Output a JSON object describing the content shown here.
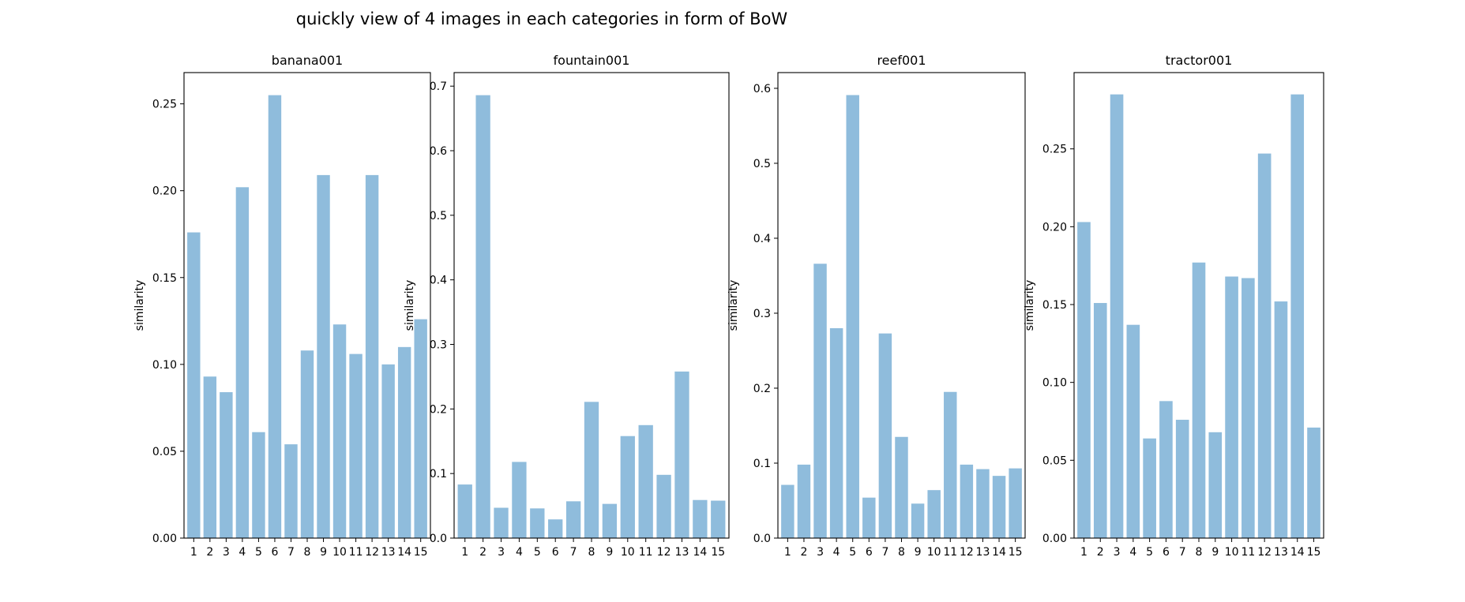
{
  "figure": {
    "title": "quickly view of 4 images in each categories in form of BoW"
  },
  "style": {
    "bar_color": "#8fbcdc",
    "axis_color": "#000000",
    "background": "#ffffff"
  },
  "chart_data": [
    {
      "type": "bar",
      "title": "banana001",
      "xlabel": "",
      "ylabel": "similarity",
      "categories": [
        "1",
        "2",
        "3",
        "4",
        "5",
        "6",
        "7",
        "8",
        "9",
        "10",
        "11",
        "12",
        "13",
        "14",
        "15"
      ],
      "values": [
        0.176,
        0.093,
        0.084,
        0.202,
        0.061,
        0.255,
        0.054,
        0.108,
        0.209,
        0.123,
        0.106,
        0.209,
        0.1,
        0.11,
        0.126
      ],
      "ylim": [
        0,
        0.268
      ],
      "yticks": [
        0,
        0.05,
        0.1,
        0.15,
        0.2,
        0.25
      ],
      "yticklabels": [
        "0.00",
        "0.05",
        "0.10",
        "0.15",
        "0.20",
        "0.25"
      ],
      "grid": false
    },
    {
      "type": "bar",
      "title": "fountain001",
      "xlabel": "",
      "ylabel": "similarity",
      "categories": [
        "1",
        "2",
        "3",
        "4",
        "5",
        "6",
        "7",
        "8",
        "9",
        "10",
        "11",
        "12",
        "13",
        "14",
        "15"
      ],
      "values": [
        0.083,
        0.686,
        0.047,
        0.118,
        0.046,
        0.029,
        0.057,
        0.211,
        0.053,
        0.158,
        0.175,
        0.098,
        0.258,
        0.059,
        0.058
      ],
      "ylim": [
        0,
        0.721
      ],
      "yticks": [
        0,
        0.1,
        0.2,
        0.3,
        0.4,
        0.5,
        0.6,
        0.7
      ],
      "yticklabels": [
        "0.0",
        "0.1",
        "0.2",
        "0.3",
        "0.4",
        "0.5",
        "0.6",
        "0.7"
      ],
      "grid": false
    },
    {
      "type": "bar",
      "title": "reef001",
      "xlabel": "",
      "ylabel": "similarity",
      "categories": [
        "1",
        "2",
        "3",
        "4",
        "5",
        "6",
        "7",
        "8",
        "9",
        "10",
        "11",
        "12",
        "13",
        "14",
        "15"
      ],
      "values": [
        0.071,
        0.098,
        0.366,
        0.28,
        0.591,
        0.054,
        0.273,
        0.135,
        0.046,
        0.064,
        0.195,
        0.098,
        0.092,
        0.083,
        0.093
      ],
      "ylim": [
        0,
        0.621
      ],
      "yticks": [
        0,
        0.1,
        0.2,
        0.3,
        0.4,
        0.5,
        0.6
      ],
      "yticklabels": [
        "0.0",
        "0.1",
        "0.2",
        "0.3",
        "0.4",
        "0.5",
        "0.6"
      ],
      "grid": false
    },
    {
      "type": "bar",
      "title": "tractor001",
      "xlabel": "",
      "ylabel": "similarity",
      "categories": [
        "1",
        "2",
        "3",
        "4",
        "5",
        "6",
        "7",
        "8",
        "9",
        "10",
        "11",
        "12",
        "13",
        "14",
        "15"
      ],
      "values": [
        0.203,
        0.151,
        0.285,
        0.137,
        0.064,
        0.088,
        0.076,
        0.177,
        0.068,
        0.168,
        0.167,
        0.247,
        0.152,
        0.285,
        0.071
      ],
      "ylim": [
        0,
        0.299
      ],
      "yticks": [
        0,
        0.05,
        0.1,
        0.15,
        0.2,
        0.25
      ],
      "yticklabels": [
        "0.00",
        "0.05",
        "0.10",
        "0.15",
        "0.20",
        "0.25"
      ],
      "grid": false
    }
  ]
}
